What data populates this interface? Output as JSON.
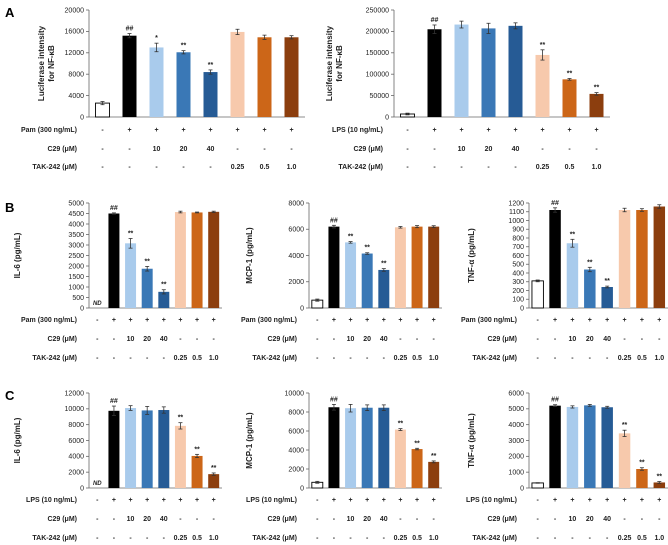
{
  "figure": {
    "treatment_labels": {
      "pam": "Pam (300 ng/mL)",
      "lps": "LPS (10 ng/mL)",
      "c29": "C29 (μM)",
      "tak": "TAK-242 (μM)"
    },
    "rows": {
      "stim_present": [
        "-",
        "+",
        "+",
        "+",
        "+",
        "+",
        "+",
        "+"
      ],
      "c29": [
        "-",
        "-",
        "10",
        "20",
        "40",
        "-",
        "-",
        "-"
      ],
      "tak": [
        "-",
        "-",
        "-",
        "-",
        "-",
        "0.25",
        "0.5",
        "1.0"
      ]
    },
    "colors": {
      "bars": [
        "#ffffff",
        "#000000",
        "#a9cbec",
        "#3a78b6",
        "#265b95",
        "#f7c9ac",
        "#cc6618",
        "#8c3e0e"
      ],
      "axis": "#555555",
      "text": "#222222"
    }
  },
  "chart_data": [
    {
      "panel_label": "A",
      "type": "bar",
      "ylabel_lines": [
        "Luciferase intensity",
        "for NF-κB"
      ],
      "stim_label": "Pam (300 ng/mL)",
      "categories": [
        "ctrl",
        "Pam",
        "Pam+C29 10",
        "Pam+C29 20",
        "Pam+C29 40",
        "Pam+TAK 0.25",
        "Pam+TAK 0.5",
        "Pam+TAK 1.0"
      ],
      "ylim": [
        0,
        20000
      ],
      "yticks": [
        "0",
        "4000",
        "8000",
        "12000",
        "16000",
        "20000"
      ],
      "values": [
        2600,
        15200,
        13000,
        12100,
        8400,
        15900,
        14900,
        14900
      ],
      "errors": [
        300,
        400,
        800,
        300,
        400,
        500,
        400,
        300
      ],
      "annotations": [
        "",
        "##",
        "*",
        "**",
        "**",
        "",
        "",
        ""
      ]
    },
    {
      "panel_label": "",
      "type": "bar",
      "ylabel_lines": [
        "Luciferase intensity",
        "for NF-κB"
      ],
      "stim_label": "LPS (10 ng/mL)",
      "categories": [
        "ctrl",
        "LPS",
        "LPS+C29 10",
        "LPS+C29 20",
        "LPS+C29 40",
        "LPS+TAK 0.25",
        "LPS+TAK 0.5",
        "LPS+TAK 1.0"
      ],
      "ylim": [
        0,
        250000
      ],
      "yticks": [
        "0",
        "50000",
        "100000",
        "150000",
        "200000",
        "250000"
      ],
      "values": [
        7000,
        205000,
        216000,
        207000,
        213000,
        145000,
        88000,
        54000
      ],
      "errors": [
        2000,
        10000,
        8000,
        12000,
        7000,
        12000,
        2000,
        3000
      ],
      "annotations": [
        "",
        "##",
        "",
        "",
        "",
        "**",
        "**",
        "**"
      ]
    },
    {
      "panel_label": "B",
      "type": "bar",
      "ylabel_lines": [
        "IL-6 (pg/mL)"
      ],
      "stim_label": "Pam (300 ng/mL)",
      "nd_label": "ND",
      "categories": [
        "ctrl",
        "Pam",
        "Pam+C29 10",
        "Pam+C29 20",
        "Pam+C29 40",
        "Pam+TAK 0.25",
        "Pam+TAK 0.5",
        "Pam+TAK 1.0"
      ],
      "ylim": [
        0,
        5000
      ],
      "yticks": [
        "0",
        "500",
        "1000",
        "1500",
        "2000",
        "2500",
        "3000",
        "3500",
        "4000",
        "4500",
        "5000"
      ],
      "values": [
        0,
        4500,
        3080,
        1870,
        770,
        4570,
        4550,
        4580
      ],
      "errors": [
        0,
        30,
        230,
        110,
        100,
        40,
        20,
        30
      ],
      "annotations": [
        "",
        "##",
        "**",
        "**",
        "**",
        "",
        "",
        ""
      ]
    },
    {
      "panel_label": "",
      "type": "bar",
      "ylabel_lines": [
        "MCP-1 (pg/mL)"
      ],
      "stim_label": "Pam (300 ng/mL)",
      "categories": [
        "ctrl",
        "Pam",
        "Pam+C29 10",
        "Pam+C29 20",
        "Pam+C29 40",
        "Pam+TAK 0.25",
        "Pam+TAK 0.5",
        "Pam+TAK 1.0"
      ],
      "ylim": [
        0,
        8000
      ],
      "yticks": [
        "0",
        "2000",
        "4000",
        "6000",
        "8000"
      ],
      "values": [
        600,
        6200,
        5000,
        4150,
        2900,
        6150,
        6200,
        6200
      ],
      "errors": [
        80,
        100,
        60,
        60,
        100,
        60,
        80,
        70
      ],
      "annotations": [
        "",
        "##",
        "**",
        "**",
        "**",
        "",
        "",
        ""
      ]
    },
    {
      "panel_label": "",
      "type": "bar",
      "ylabel_lines": [
        "TNF-α (pg/mL)"
      ],
      "stim_label": "Pam (300 ng/mL)",
      "categories": [
        "ctrl",
        "Pam",
        "Pam+C29 10",
        "Pam+C29 20",
        "Pam+C29 40",
        "Pam+TAK 0.25",
        "Pam+TAK 0.5",
        "Pam+TAK 1.0"
      ],
      "ylim": [
        0,
        1200
      ],
      "yticks": [
        "0",
        "100",
        "200",
        "300",
        "400",
        "500",
        "600",
        "700",
        "800",
        "900",
        "1000",
        "1100",
        "1200"
      ],
      "values": [
        310,
        1120,
        740,
        440,
        240,
        1120,
        1120,
        1160
      ],
      "errors": [
        10,
        25,
        45,
        25,
        10,
        20,
        15,
        20
      ],
      "annotations": [
        "",
        "##",
        "**",
        "**",
        "**",
        "",
        "",
        ""
      ]
    },
    {
      "panel_label": "C",
      "type": "bar",
      "ylabel_lines": [
        "IL-6 (pg/mL)"
      ],
      "stim_label": "LPS (10 ng/mL)",
      "nd_label": "ND",
      "categories": [
        "ctrl",
        "LPS",
        "LPS+C29 10",
        "LPS+C29 20",
        "LPS+C29 40",
        "LPS+TAK 0.25",
        "LPS+TAK 0.5",
        "LPS+TAK 1.0"
      ],
      "ylim": [
        0,
        12000
      ],
      "yticks": [
        "0",
        "2000",
        "4000",
        "6000",
        "8000",
        "10000",
        "12000"
      ],
      "values": [
        0,
        9750,
        10100,
        9800,
        9850,
        7850,
        4050,
        1750
      ],
      "errors": [
        0,
        600,
        300,
        500,
        400,
        400,
        200,
        150
      ],
      "annotations": [
        "",
        "##",
        "",
        "",
        "",
        "**",
        "**",
        "**"
      ]
    },
    {
      "panel_label": "",
      "type": "bar",
      "ylabel_lines": [
        "MCP-1 (pg/mL)"
      ],
      "stim_label": "LPS (10 ng/mL)",
      "categories": [
        "ctrl",
        "LPS",
        "LPS+C29 10",
        "LPS+C29 20",
        "LPS+C29 40",
        "LPS+TAK 0.25",
        "LPS+TAK 0.5",
        "LPS+TAK 1.0"
      ],
      "ylim": [
        0,
        10000
      ],
      "yticks": [
        "0",
        "2000",
        "4000",
        "6000",
        "8000",
        "10000"
      ],
      "values": [
        600,
        8500,
        8400,
        8450,
        8450,
        6150,
        4100,
        2750
      ],
      "errors": [
        100,
        300,
        400,
        300,
        300,
        100,
        80,
        100
      ],
      "annotations": [
        "",
        "##",
        "",
        "",
        "",
        "**",
        "**",
        "**"
      ]
    },
    {
      "panel_label": "",
      "type": "bar",
      "ylabel_lines": [
        "TNF-α (pg/mL)"
      ],
      "stim_label": "LPS (10 ng/mL)",
      "categories": [
        "ctrl",
        "LPS",
        "LPS+C29 10",
        "LPS+C29 20",
        "LPS+C29 40",
        "LPS+TAK 0.25",
        "LPS+TAK 0.5",
        "LPS+TAK 1.0"
      ],
      "ylim": [
        0,
        6000
      ],
      "yticks": [
        "0",
        "1000",
        "2000",
        "3000",
        "4000",
        "5000",
        "6000"
      ],
      "values": [
        320,
        5200,
        5120,
        5220,
        5100,
        3450,
        1200,
        350
      ],
      "errors": [
        20,
        60,
        70,
        60,
        60,
        200,
        80,
        60
      ],
      "annotations": [
        "",
        "##",
        "",
        "",
        "",
        "**",
        "**",
        "**"
      ]
    }
  ]
}
